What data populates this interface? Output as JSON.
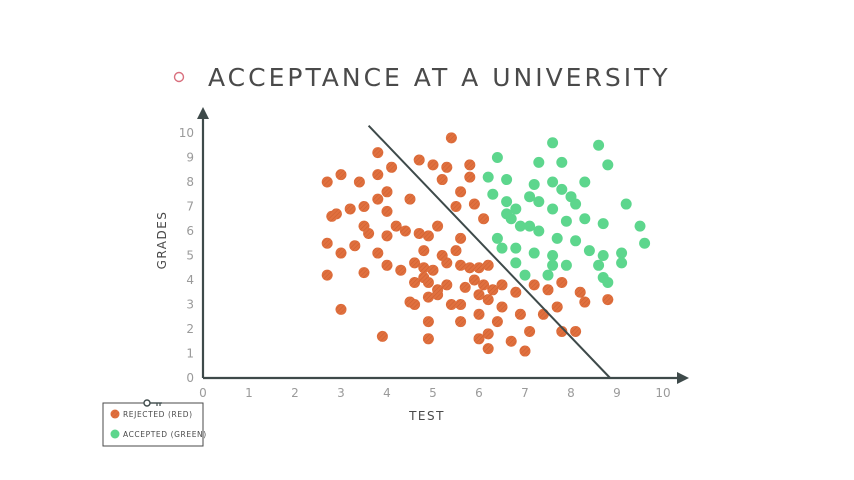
{
  "colors": {
    "rejected": "#e0703e",
    "accepted": "#5dd68d",
    "axis": "#3e4a4a",
    "title_bullet": "#d9707e"
  },
  "legend_icon": "key-icon",
  "chart_data": {
    "type": "scatter",
    "title": "ACCEPTANCE AT A UNIVERSITY",
    "xlabel": "TEST",
    "ylabel": "GRADES",
    "xlim": [
      0,
      10
    ],
    "ylim": [
      0,
      10
    ],
    "xticks": [
      "0",
      "1",
      "2",
      "3",
      "4",
      "5",
      "6",
      "7",
      "8",
      "9",
      "10"
    ],
    "yticks": [
      "0",
      "1",
      "2",
      "3",
      "4",
      "5",
      "6",
      "7",
      "8",
      "9",
      "10"
    ],
    "grid": false,
    "legend_position": "bottom-left",
    "boundary_line": {
      "x": [
        3.6,
        8.85
      ],
      "y": [
        10.3,
        0
      ]
    },
    "series": [
      {
        "name": "REJECTED (RED)",
        "points": [
          [
            5.4,
            9.8
          ],
          [
            3.8,
            9.2
          ],
          [
            4.1,
            8.6
          ],
          [
            5.0,
            8.7
          ],
          [
            5.3,
            8.6
          ],
          [
            5.8,
            8.7
          ],
          [
            4.7,
            8.9
          ],
          [
            3.0,
            8.3
          ],
          [
            2.7,
            8.0
          ],
          [
            3.4,
            8.0
          ],
          [
            3.8,
            8.3
          ],
          [
            4.0,
            7.6
          ],
          [
            5.2,
            8.1
          ],
          [
            5.6,
            7.6
          ],
          [
            5.8,
            8.2
          ],
          [
            3.5,
            7.0
          ],
          [
            3.8,
            7.3
          ],
          [
            4.0,
            6.8
          ],
          [
            4.5,
            7.3
          ],
          [
            5.5,
            7.0
          ],
          [
            5.9,
            7.1
          ],
          [
            2.8,
            6.6
          ],
          [
            2.9,
            6.7
          ],
          [
            3.2,
            6.9
          ],
          [
            3.5,
            6.2
          ],
          [
            3.6,
            5.9
          ],
          [
            3.3,
            5.4
          ],
          [
            4.0,
            5.8
          ],
          [
            4.2,
            6.2
          ],
          [
            4.4,
            6.0
          ],
          [
            4.7,
            5.9
          ],
          [
            4.9,
            5.8
          ],
          [
            5.1,
            6.2
          ],
          [
            6.1,
            6.5
          ],
          [
            2.7,
            5.5
          ],
          [
            3.0,
            5.1
          ],
          [
            3.8,
            5.1
          ],
          [
            4.8,
            5.2
          ],
          [
            5.2,
            5.0
          ],
          [
            5.5,
            5.2
          ],
          [
            5.6,
            5.7
          ],
          [
            4.0,
            4.6
          ],
          [
            4.3,
            4.4
          ],
          [
            4.6,
            4.7
          ],
          [
            4.8,
            4.5
          ],
          [
            5.0,
            4.4
          ],
          [
            5.3,
            4.7
          ],
          [
            5.6,
            4.6
          ],
          [
            5.8,
            4.5
          ],
          [
            6.0,
            4.5
          ],
          [
            6.2,
            4.6
          ],
          [
            2.7,
            4.2
          ],
          [
            3.5,
            4.3
          ],
          [
            4.6,
            3.9
          ],
          [
            4.8,
            4.1
          ],
          [
            4.9,
            3.9
          ],
          [
            5.1,
            3.6
          ],
          [
            5.3,
            3.8
          ],
          [
            5.7,
            3.7
          ],
          [
            5.9,
            4.0
          ],
          [
            6.1,
            3.8
          ],
          [
            6.3,
            3.6
          ],
          [
            6.5,
            3.8
          ],
          [
            4.5,
            3.1
          ],
          [
            4.6,
            3.0
          ],
          [
            4.9,
            3.3
          ],
          [
            5.1,
            3.4
          ],
          [
            5.4,
            3.0
          ],
          [
            5.6,
            3.0
          ],
          [
            6.0,
            3.4
          ],
          [
            6.2,
            3.2
          ],
          [
            6.5,
            2.9
          ],
          [
            6.8,
            3.5
          ],
          [
            7.2,
            3.8
          ],
          [
            7.5,
            3.6
          ],
          [
            7.8,
            3.9
          ],
          [
            7.7,
            2.9
          ],
          [
            8.2,
            3.5
          ],
          [
            8.3,
            3.1
          ],
          [
            8.8,
            3.2
          ],
          [
            3.0,
            2.8
          ],
          [
            4.9,
            2.3
          ],
          [
            5.6,
            2.3
          ],
          [
            6.0,
            2.6
          ],
          [
            6.4,
            2.3
          ],
          [
            6.9,
            2.6
          ],
          [
            7.1,
            1.9
          ],
          [
            7.4,
            2.6
          ],
          [
            7.8,
            1.9
          ],
          [
            8.1,
            1.9
          ],
          [
            6.0,
            1.6
          ],
          [
            6.2,
            1.8
          ],
          [
            6.7,
            1.5
          ],
          [
            7.0,
            1.1
          ],
          [
            6.2,
            1.2
          ],
          [
            3.9,
            1.7
          ],
          [
            4.9,
            1.6
          ]
        ]
      },
      {
        "name": "ACCEPTED (GREEN)",
        "points": [
          [
            6.4,
            9.0
          ],
          [
            7.6,
            9.6
          ],
          [
            8.6,
            9.5
          ],
          [
            7.3,
            8.8
          ],
          [
            7.8,
            8.8
          ],
          [
            8.8,
            8.7
          ],
          [
            6.2,
            8.2
          ],
          [
            6.6,
            8.1
          ],
          [
            7.2,
            7.9
          ],
          [
            7.6,
            8.0
          ],
          [
            8.3,
            8.0
          ],
          [
            7.8,
            7.7
          ],
          [
            6.3,
            7.5
          ],
          [
            6.6,
            7.2
          ],
          [
            6.8,
            6.9
          ],
          [
            7.1,
            7.4
          ],
          [
            7.3,
            7.2
          ],
          [
            7.6,
            6.9
          ],
          [
            8.0,
            7.4
          ],
          [
            8.1,
            7.1
          ],
          [
            9.2,
            7.1
          ],
          [
            6.6,
            6.7
          ],
          [
            6.7,
            6.5
          ],
          [
            6.9,
            6.2
          ],
          [
            7.1,
            6.2
          ],
          [
            7.3,
            6.0
          ],
          [
            7.9,
            6.4
          ],
          [
            8.3,
            6.5
          ],
          [
            8.7,
            6.3
          ],
          [
            9.5,
            6.2
          ],
          [
            6.4,
            5.7
          ],
          [
            6.5,
            5.3
          ],
          [
            6.8,
            5.3
          ],
          [
            7.2,
            5.1
          ],
          [
            7.6,
            5.0
          ],
          [
            7.7,
            5.7
          ],
          [
            8.1,
            5.6
          ],
          [
            8.4,
            5.2
          ],
          [
            8.7,
            5.0
          ],
          [
            9.1,
            5.1
          ],
          [
            9.6,
            5.5
          ],
          [
            6.8,
            4.7
          ],
          [
            7.0,
            4.2
          ],
          [
            7.5,
            4.2
          ],
          [
            7.9,
            4.6
          ],
          [
            8.6,
            4.6
          ],
          [
            8.7,
            4.1
          ],
          [
            9.1,
            4.7
          ],
          [
            7.6,
            4.6
          ],
          [
            8.8,
            3.9
          ]
        ]
      }
    ]
  }
}
